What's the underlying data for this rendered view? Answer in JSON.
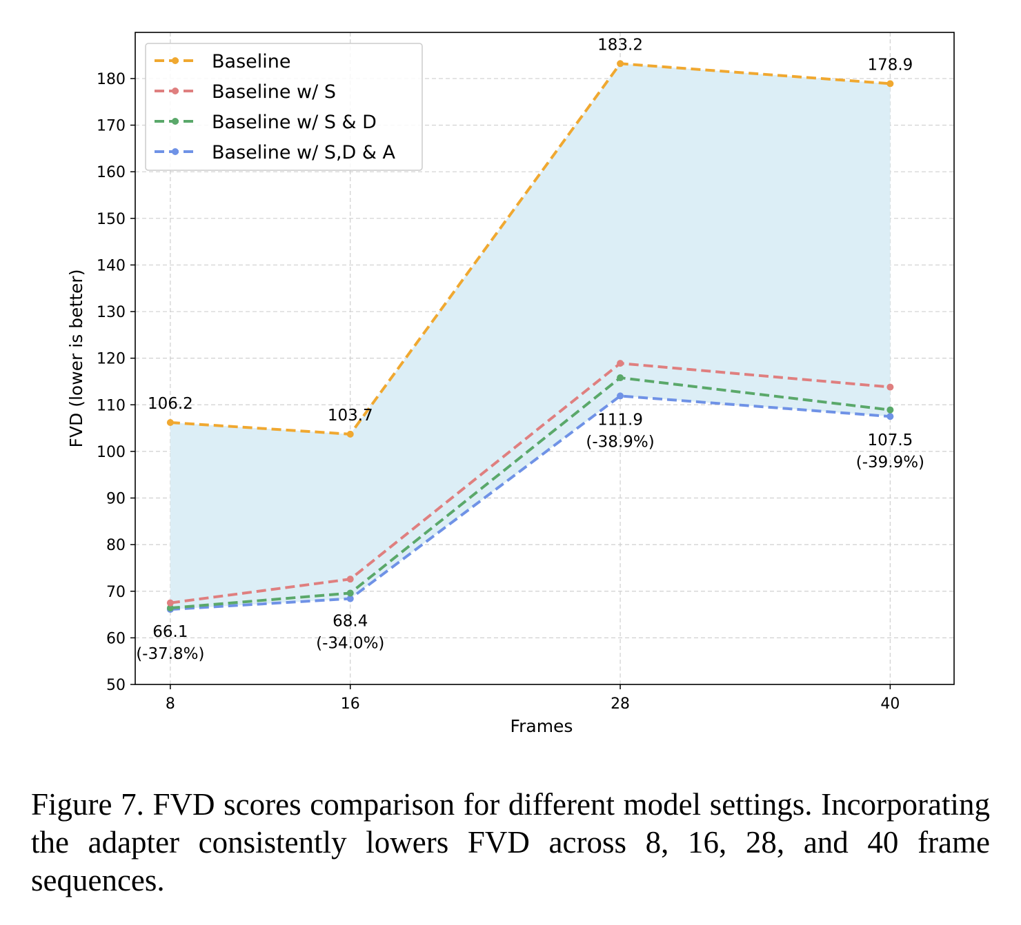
{
  "chart_data": {
    "type": "line",
    "categories": [
      "8",
      "16",
      "28",
      "40"
    ],
    "x": [
      8,
      16,
      28,
      40
    ],
    "xlabel": "Frames",
    "ylabel": "FVD (lower is better)",
    "ylim": [
      50,
      190
    ],
    "yticks": [
      50,
      60,
      70,
      80,
      90,
      100,
      110,
      120,
      130,
      140,
      150,
      160,
      170,
      180
    ],
    "grid": true,
    "legend_position": "top-left",
    "fill_between": {
      "upper": "Baseline",
      "lower": "Baseline w/ S,D & A",
      "color": "#dceef6"
    },
    "series": [
      {
        "name": "Baseline",
        "color": "#f0a830",
        "values": [
          106.2,
          103.7,
          183.2,
          178.9
        ]
      },
      {
        "name": "Baseline w/ S",
        "color": "#df7f7f",
        "values": [
          67.5,
          72.6,
          118.9,
          113.8
        ]
      },
      {
        "name": "Baseline w/ S & D",
        "color": "#5aa86a",
        "values": [
          66.4,
          69.6,
          115.8,
          108.9
        ]
      },
      {
        "name": "Baseline w/ S,D & A",
        "color": "#6f92e6",
        "values": [
          66.1,
          68.4,
          111.9,
          107.5
        ]
      }
    ],
    "annotations": {
      "baseline_values": {
        "color": "#e8a463",
        "labels": [
          "106.2",
          "103.7",
          "183.2",
          "178.9"
        ]
      },
      "best_values": {
        "color": "#2a10e8",
        "labels": [
          "66.1",
          "68.4",
          "111.9",
          "107.5"
        ]
      },
      "improvements": {
        "color": "#000000",
        "labels": [
          "(-37.8%)",
          "(-34.0%)",
          "(-38.9%)",
          "(-39.9%)"
        ]
      }
    }
  },
  "caption": "Figure 7.  FVD scores comparison for different model settings. Incorporating the adapter consistently lowers FVD across 8, 16, 28, and 40 frame sequences."
}
